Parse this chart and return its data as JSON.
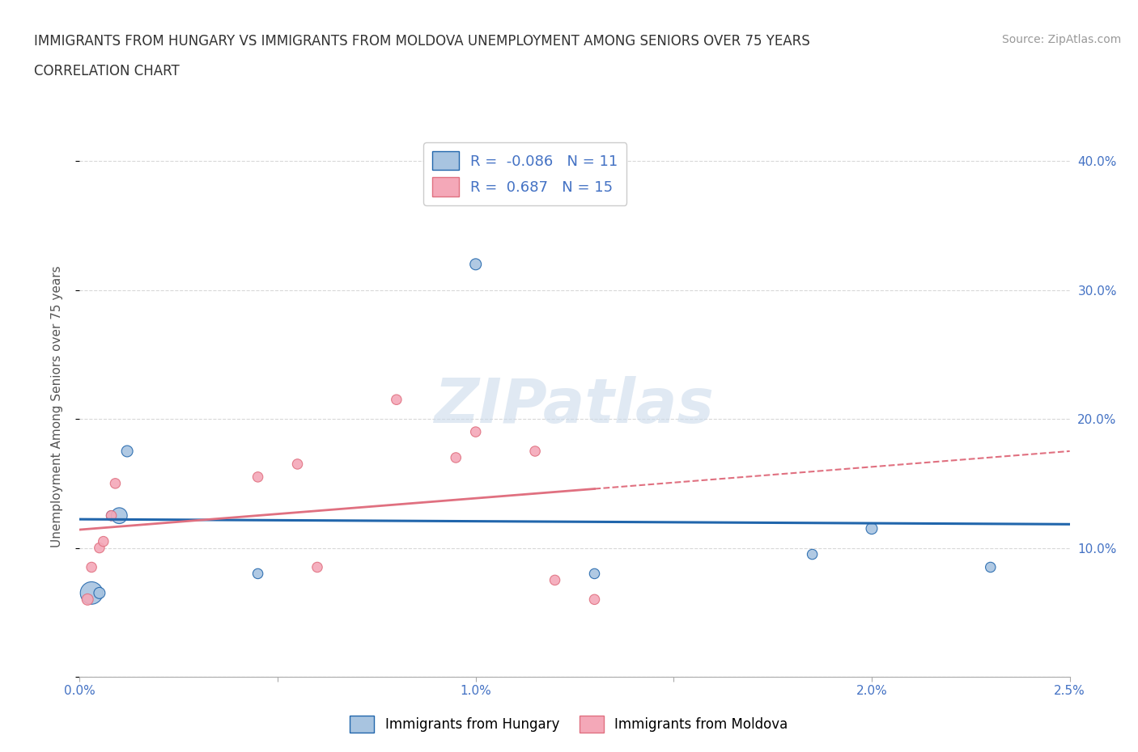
{
  "title_line1": "IMMIGRANTS FROM HUNGARY VS IMMIGRANTS FROM MOLDOVA UNEMPLOYMENT AMONG SENIORS OVER 75 YEARS",
  "title_line2": "CORRELATION CHART",
  "source": "Source: ZipAtlas.com",
  "ylabel": "Unemployment Among Seniors over 75 years",
  "xlim": [
    0.0,
    0.025
  ],
  "ylim": [
    0.0,
    0.42
  ],
  "xticks": [
    0.0,
    0.005,
    0.01,
    0.015,
    0.02,
    0.025
  ],
  "xticklabels": [
    "0.0%",
    "",
    "1.0%",
    "",
    "2.0%",
    "2.5%"
  ],
  "yticks_right": [
    0.1,
    0.2,
    0.3,
    0.4
  ],
  "yticklabels_right": [
    "10.0%",
    "20.0%",
    "30.0%",
    "40.0%"
  ],
  "watermark": "ZIPatlas",
  "hungary_color": "#a8c4e0",
  "moldova_color": "#f4a8b8",
  "hungary_line_color": "#2166ac",
  "moldova_line_color": "#e07080",
  "moldova_dash_color": "#e07080",
  "R_hungary": -0.086,
  "N_hungary": 11,
  "R_moldova": 0.687,
  "N_moldova": 15,
  "hungary_x": [
    0.0003,
    0.0005,
    0.0008,
    0.001,
    0.0012,
    0.0045,
    0.01,
    0.013,
    0.0185,
    0.02,
    0.023
  ],
  "hungary_y": [
    0.065,
    0.065,
    0.125,
    0.125,
    0.175,
    0.08,
    0.32,
    0.08,
    0.095,
    0.115,
    0.085
  ],
  "hungary_size": [
    400,
    100,
    80,
    200,
    100,
    80,
    100,
    80,
    80,
    100,
    80
  ],
  "moldova_x": [
    0.0002,
    0.0003,
    0.0005,
    0.0006,
    0.0008,
    0.0009,
    0.0045,
    0.0055,
    0.006,
    0.008,
    0.0095,
    0.01,
    0.0115,
    0.012,
    0.013
  ],
  "moldova_y": [
    0.06,
    0.085,
    0.1,
    0.105,
    0.125,
    0.15,
    0.155,
    0.165,
    0.085,
    0.215,
    0.17,
    0.19,
    0.175,
    0.075,
    0.06
  ],
  "moldova_size": [
    100,
    80,
    80,
    80,
    80,
    80,
    80,
    80,
    80,
    80,
    80,
    80,
    80,
    80,
    80
  ],
  "background_color": "#ffffff",
  "grid_color": "#d8d8d8"
}
